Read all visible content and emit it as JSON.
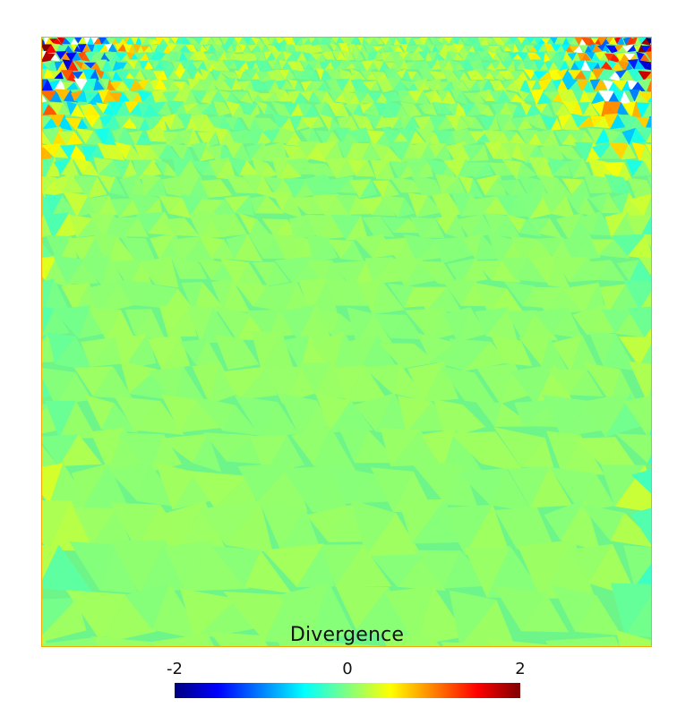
{
  "figure": {
    "colorbar": {
      "title": "Divergence",
      "min": -2,
      "max": 2,
      "ticks": [
        {
          "value": -2,
          "label": "-2"
        },
        {
          "value": 0,
          "label": "0"
        },
        {
          "value": 2,
          "label": "2"
        }
      ],
      "colormap": "jet",
      "colors": [
        "#00007f",
        "#0000ff",
        "#0080ff",
        "#00ffff",
        "#80ff80",
        "#ffff00",
        "#ff8000",
        "#ff0000",
        "#7f0000"
      ]
    },
    "field": {
      "background_color": "#6ef58a",
      "border_color": "#f5a800",
      "mesh": "triangular",
      "description_values": "mostly near 0, strong oscillation near top corners"
    }
  }
}
